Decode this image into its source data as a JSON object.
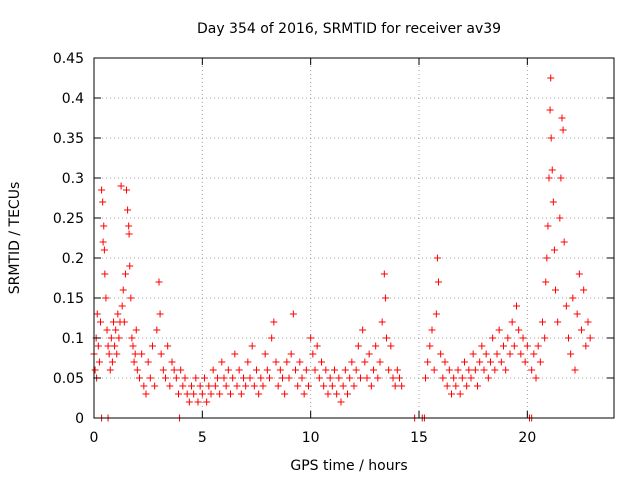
{
  "chart_data": {
    "type": "scatter",
    "title": "Day 354 of 2016, SRMTID for receiver av39",
    "xlabel": "GPS time / hours",
    "ylabel": "SRMTID / TECUs",
    "xlim": [
      0,
      24
    ],
    "ylim": [
      0,
      0.45
    ],
    "xticks": [
      0,
      5,
      10,
      15,
      20
    ],
    "xtick_labels": [
      "0",
      "5",
      "10",
      "15",
      "20"
    ],
    "yticks": [
      0,
      0.05,
      0.1,
      0.15,
      0.2,
      0.25,
      0.3,
      0.35,
      0.4,
      0.45
    ],
    "ytick_labels": [
      "0",
      "0.05",
      "0.1",
      "0.15",
      "0.2",
      "0.25",
      "0.3",
      "0.35",
      "0.4",
      "0.45"
    ],
    "grid": true,
    "marker": "+",
    "series": [
      {
        "name": "SRMTID",
        "color": "#ff0000",
        "note": "representative sample of the dense point cloud",
        "points": [
          [
            0.0,
            0.08
          ],
          [
            0.05,
            0.06
          ],
          [
            0.1,
            0.1
          ],
          [
            0.12,
            0.05
          ],
          [
            0.15,
            0.13
          ],
          [
            0.2,
            0.09
          ],
          [
            0.25,
            0.07
          ],
          [
            0.3,
            0.12
          ],
          [
            0.35,
            0.285
          ],
          [
            0.4,
            0.27
          ],
          [
            0.42,
            0.22
          ],
          [
            0.45,
            0.24
          ],
          [
            0.48,
            0.21
          ],
          [
            0.5,
            0.18
          ],
          [
            0.55,
            0.15
          ],
          [
            0.6,
            0.11
          ],
          [
            0.65,
            0.09
          ],
          [
            0.7,
            0.08
          ],
          [
            0.75,
            0.06
          ],
          [
            0.8,
            0.1
          ],
          [
            0.85,
            0.07
          ],
          [
            0.9,
            0.12
          ],
          [
            0.95,
            0.09
          ],
          [
            1.0,
            0.11
          ],
          [
            1.05,
            0.08
          ],
          [
            1.1,
            0.13
          ],
          [
            1.15,
            0.1
          ],
          [
            1.2,
            0.12
          ],
          [
            1.25,
            0.29
          ],
          [
            1.3,
            0.14
          ],
          [
            1.35,
            0.16
          ],
          [
            1.4,
            0.12
          ],
          [
            1.45,
            0.18
          ],
          [
            1.5,
            0.285
          ],
          [
            1.55,
            0.26
          ],
          [
            1.6,
            0.24
          ],
          [
            1.62,
            0.23
          ],
          [
            1.65,
            0.19
          ],
          [
            1.7,
            0.15
          ],
          [
            1.75,
            0.1
          ],
          [
            1.8,
            0.09
          ],
          [
            1.85,
            0.07
          ],
          [
            1.9,
            0.08
          ],
          [
            1.95,
            0.11
          ],
          [
            2.0,
            0.06
          ],
          [
            2.1,
            0.05
          ],
          [
            2.2,
            0.08
          ],
          [
            2.3,
            0.04
          ],
          [
            2.4,
            0.03
          ],
          [
            2.5,
            0.07
          ],
          [
            2.6,
            0.05
          ],
          [
            2.7,
            0.09
          ],
          [
            2.8,
            0.04
          ],
          [
            2.9,
            0.11
          ],
          [
            3.0,
            0.17
          ],
          [
            3.05,
            0.13
          ],
          [
            3.1,
            0.08
          ],
          [
            3.2,
            0.06
          ],
          [
            3.3,
            0.05
          ],
          [
            3.4,
            0.09
          ],
          [
            3.5,
            0.04
          ],
          [
            3.6,
            0.07
          ],
          [
            3.7,
            0.06
          ],
          [
            3.8,
            0.05
          ],
          [
            3.9,
            0.03
          ],
          [
            4.0,
            0.06
          ],
          [
            4.1,
            0.04
          ],
          [
            4.2,
            0.05
          ],
          [
            4.3,
            0.03
          ],
          [
            4.4,
            0.02
          ],
          [
            4.5,
            0.04
          ],
          [
            4.6,
            0.03
          ],
          [
            4.7,
            0.05
          ],
          [
            4.8,
            0.02
          ],
          [
            4.9,
            0.04
          ],
          [
            5.0,
            0.03
          ],
          [
            5.1,
            0.05
          ],
          [
            5.2,
            0.02
          ],
          [
            5.3,
            0.04
          ],
          [
            5.4,
            0.03
          ],
          [
            5.5,
            0.06
          ],
          [
            5.6,
            0.04
          ],
          [
            5.7,
            0.05
          ],
          [
            5.8,
            0.03
          ],
          [
            5.9,
            0.07
          ],
          [
            6.0,
            0.05
          ],
          [
            6.1,
            0.04
          ],
          [
            6.2,
            0.06
          ],
          [
            6.3,
            0.03
          ],
          [
            6.4,
            0.05
          ],
          [
            6.5,
            0.08
          ],
          [
            6.6,
            0.04
          ],
          [
            6.7,
            0.06
          ],
          [
            6.8,
            0.03
          ],
          [
            6.9,
            0.05
          ],
          [
            7.0,
            0.04
          ],
          [
            7.1,
            0.07
          ],
          [
            7.2,
            0.05
          ],
          [
            7.3,
            0.09
          ],
          [
            7.4,
            0.04
          ],
          [
            7.5,
            0.06
          ],
          [
            7.6,
            0.03
          ],
          [
            7.7,
            0.05
          ],
          [
            7.8,
            0.04
          ],
          [
            7.9,
            0.08
          ],
          [
            8.0,
            0.06
          ],
          [
            8.1,
            0.05
          ],
          [
            8.2,
            0.1
          ],
          [
            8.3,
            0.12
          ],
          [
            8.4,
            0.07
          ],
          [
            8.5,
            0.04
          ],
          [
            8.6,
            0.06
          ],
          [
            8.7,
            0.05
          ],
          [
            8.8,
            0.03
          ],
          [
            8.9,
            0.07
          ],
          [
            9.0,
            0.05
          ],
          [
            9.1,
            0.08
          ],
          [
            9.2,
            0.13
          ],
          [
            9.3,
            0.06
          ],
          [
            9.4,
            0.04
          ],
          [
            9.5,
            0.07
          ],
          [
            9.6,
            0.05
          ],
          [
            9.7,
            0.03
          ],
          [
            9.8,
            0.06
          ],
          [
            9.9,
            0.04
          ],
          [
            10.0,
            0.1
          ],
          [
            10.1,
            0.08
          ],
          [
            10.2,
            0.06
          ],
          [
            10.3,
            0.09
          ],
          [
            10.4,
            0.05
          ],
          [
            10.5,
            0.07
          ],
          [
            10.6,
            0.04
          ],
          [
            10.7,
            0.06
          ],
          [
            10.8,
            0.03
          ],
          [
            10.9,
            0.05
          ],
          [
            11.0,
            0.04
          ],
          [
            11.1,
            0.06
          ],
          [
            11.2,
            0.03
          ],
          [
            11.3,
            0.05
          ],
          [
            11.4,
            0.02
          ],
          [
            11.5,
            0.04
          ],
          [
            11.6,
            0.06
          ],
          [
            11.7,
            0.03
          ],
          [
            11.8,
            0.05
          ],
          [
            11.9,
            0.07
          ],
          [
            12.0,
            0.04
          ],
          [
            12.1,
            0.06
          ],
          [
            12.2,
            0.09
          ],
          [
            12.3,
            0.05
          ],
          [
            12.4,
            0.11
          ],
          [
            12.5,
            0.07
          ],
          [
            12.6,
            0.05
          ],
          [
            12.7,
            0.08
          ],
          [
            12.8,
            0.04
          ],
          [
            12.9,
            0.06
          ],
          [
            13.0,
            0.09
          ],
          [
            13.1,
            0.05
          ],
          [
            13.2,
            0.07
          ],
          [
            13.3,
            0.12
          ],
          [
            13.4,
            0.18
          ],
          [
            13.45,
            0.15
          ],
          [
            13.5,
            0.1
          ],
          [
            13.6,
            0.06
          ],
          [
            13.7,
            0.09
          ],
          [
            13.8,
            0.05
          ],
          [
            13.9,
            0.04
          ],
          [
            14.0,
            0.06
          ],
          [
            14.1,
            0.05
          ],
          [
            14.2,
            0.04
          ],
          [
            15.3,
            0.05
          ],
          [
            15.4,
            0.07
          ],
          [
            15.5,
            0.09
          ],
          [
            15.6,
            0.11
          ],
          [
            15.7,
            0.06
          ],
          [
            15.8,
            0.13
          ],
          [
            15.85,
            0.2
          ],
          [
            15.9,
            0.17
          ],
          [
            16.0,
            0.08
          ],
          [
            16.1,
            0.05
          ],
          [
            16.2,
            0.07
          ],
          [
            16.3,
            0.04
          ],
          [
            16.4,
            0.06
          ],
          [
            16.5,
            0.03
          ],
          [
            16.6,
            0.05
          ],
          [
            16.7,
            0.04
          ],
          [
            16.8,
            0.06
          ],
          [
            16.9,
            0.03
          ],
          [
            17.0,
            0.05
          ],
          [
            17.1,
            0.07
          ],
          [
            17.2,
            0.04
          ],
          [
            17.3,
            0.06
          ],
          [
            17.4,
            0.05
          ],
          [
            17.5,
            0.08
          ],
          [
            17.6,
            0.06
          ],
          [
            17.7,
            0.04
          ],
          [
            17.8,
            0.07
          ],
          [
            17.9,
            0.09
          ],
          [
            18.0,
            0.06
          ],
          [
            18.1,
            0.08
          ],
          [
            18.2,
            0.05
          ],
          [
            18.3,
            0.07
          ],
          [
            18.4,
            0.1
          ],
          [
            18.5,
            0.06
          ],
          [
            18.6,
            0.08
          ],
          [
            18.7,
            0.11
          ],
          [
            18.8,
            0.07
          ],
          [
            18.9,
            0.09
          ],
          [
            19.0,
            0.06
          ],
          [
            19.1,
            0.1
          ],
          [
            19.2,
            0.08
          ],
          [
            19.3,
            0.12
          ],
          [
            19.4,
            0.09
          ],
          [
            19.5,
            0.14
          ],
          [
            19.6,
            0.11
          ],
          [
            19.7,
            0.08
          ],
          [
            19.8,
            0.1
          ],
          [
            19.9,
            0.07
          ],
          [
            20.0,
            0.09
          ],
          [
            20.2,
            0.06
          ],
          [
            20.3,
            0.08
          ],
          [
            20.4,
            0.05
          ],
          [
            20.5,
            0.09
          ],
          [
            20.6,
            0.07
          ],
          [
            20.7,
            0.12
          ],
          [
            20.8,
            0.1
          ],
          [
            20.85,
            0.17
          ],
          [
            20.9,
            0.2
          ],
          [
            20.95,
            0.24
          ],
          [
            21.0,
            0.3
          ],
          [
            21.05,
            0.385
          ],
          [
            21.08,
            0.425
          ],
          [
            21.1,
            0.35
          ],
          [
            21.15,
            0.31
          ],
          [
            21.2,
            0.27
          ],
          [
            21.25,
            0.21
          ],
          [
            21.3,
            0.16
          ],
          [
            21.4,
            0.12
          ],
          [
            21.5,
            0.25
          ],
          [
            21.55,
            0.3
          ],
          [
            21.6,
            0.375
          ],
          [
            21.65,
            0.36
          ],
          [
            21.7,
            0.22
          ],
          [
            21.8,
            0.14
          ],
          [
            21.9,
            0.1
          ],
          [
            22.0,
            0.08
          ],
          [
            22.1,
            0.15
          ],
          [
            22.2,
            0.06
          ],
          [
            22.3,
            0.13
          ],
          [
            22.4,
            0.18
          ],
          [
            22.5,
            0.11
          ],
          [
            22.6,
            0.16
          ],
          [
            22.7,
            0.09
          ],
          [
            22.8,
            0.12
          ],
          [
            22.9,
            0.1
          ],
          [
            0.35,
            0.0
          ],
          [
            0.65,
            0.0
          ],
          [
            3.95,
            0.0
          ],
          [
            14.8,
            0.0
          ],
          [
            15.15,
            0.0
          ],
          [
            15.25,
            0.0
          ],
          [
            20.1,
            0.0
          ],
          [
            20.2,
            0.0
          ]
        ]
      }
    ]
  }
}
